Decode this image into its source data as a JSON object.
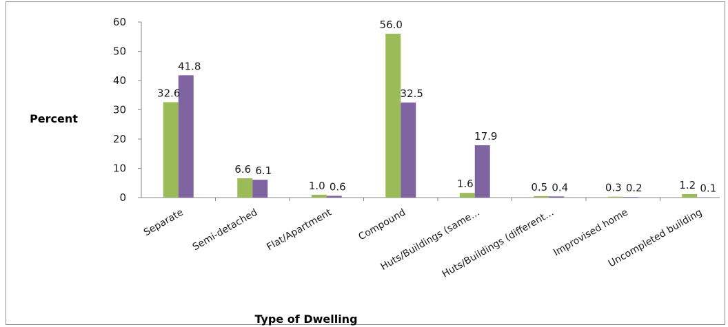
{
  "chart_data": {
    "type": "bar",
    "title": "",
    "xlabel": "Type of Dwelling",
    "ylabel": "Percent",
    "ylim": [
      0,
      60
    ],
    "yticks": [
      0,
      10,
      20,
      30,
      40,
      50,
      60
    ],
    "grid": false,
    "legend": "none",
    "categories": [
      "Separate",
      "Semi-detached",
      "Flat/Apartment",
      "Compound",
      "Huts/Buildings (same…",
      "Huts/Buildings (different…",
      "Improvised home",
      "Uncompleted building"
    ],
    "series": [
      {
        "color": "#9bbb59",
        "values": [
          32.6,
          6.6,
          1.0,
          56.0,
          1.6,
          0.5,
          0.3,
          1.2
        ],
        "labels": [
          "32.6",
          "6.6",
          "1.0",
          "56.0",
          "1.6",
          "0.5",
          "0.3",
          "1.2"
        ]
      },
      {
        "color": "#8064a2",
        "values": [
          41.8,
          6.1,
          0.6,
          32.5,
          17.9,
          0.4,
          0.2,
          0.1
        ],
        "labels": [
          "41.8",
          "6.1",
          "0.6",
          "32.5",
          "17.9",
          "0.4",
          "0.2",
          "0.1"
        ]
      }
    ]
  }
}
